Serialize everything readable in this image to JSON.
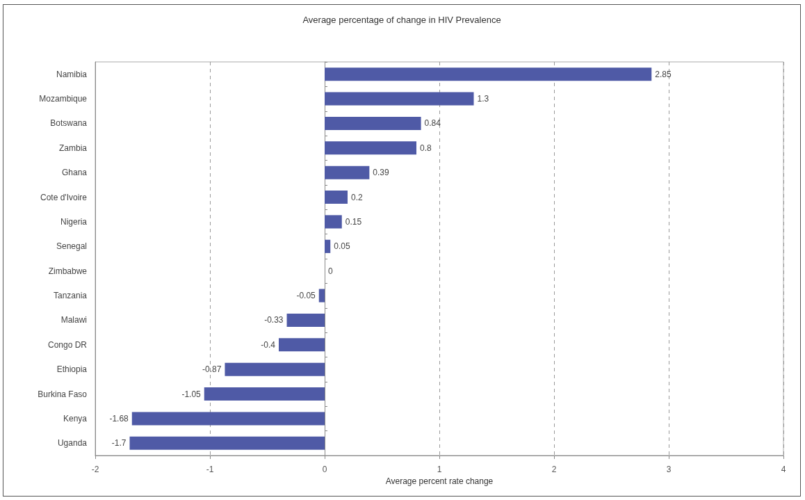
{
  "chart_data": {
    "type": "bar",
    "orientation": "horizontal",
    "title": "Average percentage of change in HIV Prevalence",
    "xlabel": "Average percent rate change",
    "categories": [
      "Namibia",
      "Mozambique",
      "Botswana",
      "Zambia",
      "Ghana",
      "Cote d'Ivoire",
      "Nigeria",
      "Senegal",
      "Zimbabwe",
      "Tanzania",
      "Malawi",
      "Congo DR",
      "Ethiopia",
      "Burkina Faso",
      "Kenya",
      "Uganda"
    ],
    "values": [
      2.85,
      1.3,
      0.84,
      0.8,
      0.39,
      0.2,
      0.15,
      0.05,
      0,
      -0.05,
      -0.33,
      -0.4,
      -0.87,
      -1.05,
      -1.68,
      -1.7
    ],
    "color": "#4f5aa6",
    "xlim": [
      -2,
      4
    ],
    "xticks": [
      -2,
      -1,
      0,
      1,
      2,
      3,
      4
    ],
    "grid": "x",
    "data_labels": true
  }
}
